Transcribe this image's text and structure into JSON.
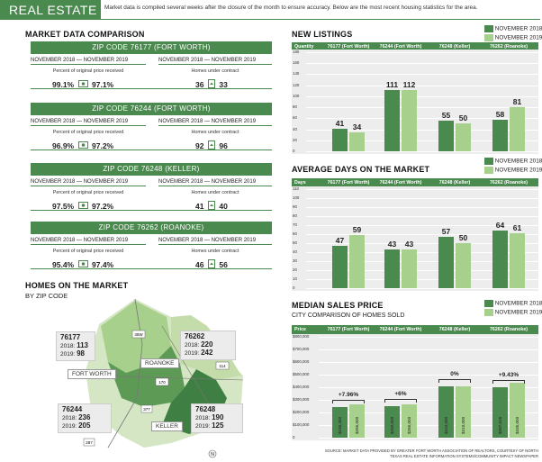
{
  "header": {
    "brand": "REAL ESTATE",
    "note": "Market data is compiled several weeks after the closure of the month to ensure accuracy. Below are the most recent housing statistics for the area."
  },
  "comparison": {
    "title": "MARKET DATA COMPARISON",
    "range_label": "NOVEMBER 2018 — NOVEMBER 2019",
    "label_pct": "Percent of original price received",
    "label_homes": "Homes under contract",
    "zips": [
      {
        "title": "ZIP CODE 76177 (FORT WORTH)",
        "pct_2018": "99.1%",
        "pct_2019": "97.1%",
        "homes_2018": "36",
        "homes_2019": "33"
      },
      {
        "title": "ZIP CODE 76244 (FORT WORTH)",
        "pct_2018": "96.9%",
        "pct_2019": "97.2%",
        "homes_2018": "92",
        "homes_2019": "96"
      },
      {
        "title": "ZIP CODE 76248 (KELLER)",
        "pct_2018": "97.5%",
        "pct_2019": "97.2%",
        "homes_2018": "41",
        "homes_2019": "40"
      },
      {
        "title": "ZIP CODE 76262 (ROANOKE)",
        "pct_2018": "95.4%",
        "pct_2019": "97.4%",
        "homes_2018": "46",
        "homes_2019": "56"
      }
    ]
  },
  "map": {
    "title": "HOMES ON THE MARKET",
    "subtitle": "BY ZIP CODE",
    "places": {
      "fortworth": "FORT WORTH",
      "roanoke": "ROANOKE",
      "keller": "KELLER"
    },
    "roads": {
      "r1": "35W",
      "r2": "170",
      "r3": "114",
      "r4": "377",
      "r5": "287"
    },
    "callouts": [
      {
        "zip": "76177",
        "l1": "2018: ",
        "v1": "113",
        "l2": "2019: ",
        "v2": "98"
      },
      {
        "zip": "76262",
        "l1": "2018: ",
        "v1": "220",
        "l2": "2019: ",
        "v2": "242"
      },
      {
        "zip": "76244",
        "l1": "2018: ",
        "v1": "236",
        "l2": "2019: ",
        "v2": "205"
      },
      {
        "zip": "76248",
        "l1": "2018: ",
        "v1": "190",
        "l2": "2019: ",
        "v2": "125"
      }
    ],
    "north": "N"
  },
  "legend": {
    "y2018": "NOVEMBER 2018",
    "y2019": "NOVEMBER 2019"
  },
  "colors": {
    "dark": "#4a8a4e",
    "light": "#a8d08d",
    "bg": "#ededed"
  },
  "chart_data": [
    {
      "type": "bar",
      "title": "NEW LISTINGS",
      "row_label": "Quantity",
      "categories": [
        "76177 (Fort Worth)",
        "76244 (Fort Worth)",
        "76248 (Keller)",
        "76262 (Roanoke)"
      ],
      "series": [
        {
          "name": "NOVEMBER 2018",
          "values": [
            41,
            111,
            55,
            58
          ]
        },
        {
          "name": "NOVEMBER 2019",
          "values": [
            34,
            112,
            50,
            81
          ]
        }
      ],
      "ylim": [
        0,
        180
      ],
      "yticks": [
        "180",
        "160",
        "140",
        "120",
        "100",
        "80",
        "60",
        "40",
        "20",
        "0"
      ]
    },
    {
      "type": "bar",
      "title": "AVERAGE DAYS ON THE MARKET",
      "row_label": "Days",
      "categories": [
        "76177 (Fort Worth)",
        "76244 (Fort Worth)",
        "76248 (Keller)",
        "76262 (Roanoke)"
      ],
      "series": [
        {
          "name": "NOVEMBER 2018",
          "values": [
            47,
            43,
            57,
            64
          ]
        },
        {
          "name": "NOVEMBER 2019",
          "values": [
            59,
            43,
            50,
            61
          ]
        }
      ],
      "ylim": [
        0,
        110
      ],
      "yticks": [
        "110",
        "100",
        "90",
        "80",
        "70",
        "60",
        "50",
        "40",
        "30",
        "20",
        "10",
        "0"
      ]
    },
    {
      "type": "bar",
      "title": "MEDIAN SALES PRICE",
      "subtitle": "CITY COMPARISON OF HOMES SOLD",
      "row_label": "Price",
      "categories": [
        "76177 (Fort Worth)",
        "76244 (Fort Worth)",
        "76248 (Keller)",
        "76262 (Roanoke)"
      ],
      "series": [
        {
          "name": "NOVEMBER 2018",
          "values": [
            245450,
            250000,
            410000,
            397526
          ]
        },
        {
          "name": "NOVEMBER 2019",
          "values": [
            265000,
            265000,
            410000,
            435000
          ]
        }
      ],
      "value_labels_2018": [
        "$245,450",
        "$250,000",
        "$410,000",
        "$397,526"
      ],
      "value_labels_2019": [
        "$265,000",
        "$265,000",
        "$410,000",
        "$435,000"
      ],
      "changes": [
        "+7.96%",
        "+6%",
        "0%",
        "+9.43%"
      ],
      "ylim": [
        0,
        800000
      ],
      "yticks": [
        "$800,000",
        "$700,000",
        "$600,000",
        "$500,000",
        "$400,000",
        "$300,000",
        "$200,000",
        "$100,000",
        "0"
      ]
    }
  ],
  "source": {
    "l1": "SOURCE: MARKET DATA PROVIDED BY GREATER FORT WORTH ASSOCIATION OF REALTORS, COURTESY OF NORTH",
    "l2": "TEXAS REAL ESTATE INFORMATION SYSTEMS/COMMUNITY IMPACT NEWSPAPER"
  }
}
